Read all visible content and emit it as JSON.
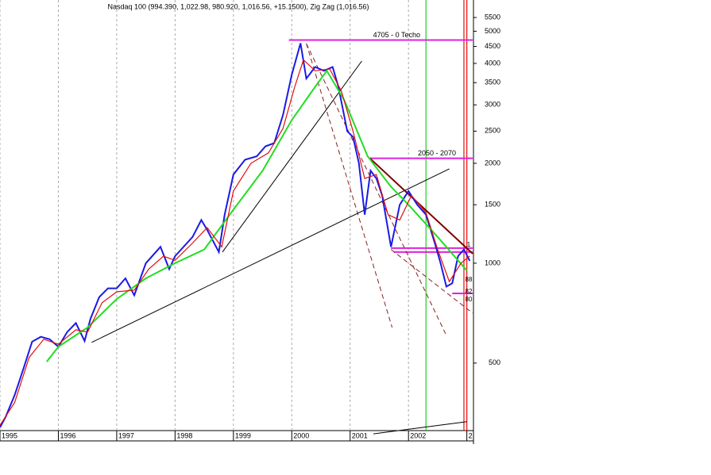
{
  "chart_data": {
    "type": "line",
    "title": "Nasdaq 100 (994.390, 1,022.98, 980.920, 1,016.56, +15.1500), Zig Zag (1,016.56)",
    "log_scale": true,
    "grid": true,
    "xlim": [
      1995,
      2003.1
    ],
    "ylim": [
      313,
      6210
    ],
    "xticks": [
      1995,
      1996,
      1997,
      1998,
      1999,
      2000,
      2001,
      2002,
      {
        "value": 2003,
        "label": "2"
      }
    ],
    "yticks": [
      500,
      1000,
      1500,
      2000,
      2500,
      3000,
      3500,
      4000,
      4500,
      5000,
      5500
    ],
    "series": [
      {
        "color": "#1a1ae6",
        "x": [
          1995.0,
          1995.1,
          1995.25,
          1995.4,
          1995.55,
          1995.7,
          1995.85,
          1996.0,
          1996.15,
          1996.3,
          1996.45,
          1996.55,
          1996.7,
          1996.85,
          1997.0,
          1997.15,
          1997.3,
          1997.5,
          1997.75,
          1997.9,
          1998.0,
          1998.3,
          1998.45,
          1998.55,
          1998.75,
          1998.85,
          1999.0,
          1999.2,
          1999.4,
          1999.55,
          1999.7,
          1999.85,
          2000.0,
          2000.15,
          2000.25,
          2000.4,
          2000.55,
          2000.7,
          2000.8,
          2000.95,
          2001.05,
          2001.15,
          2001.25,
          2001.35,
          2001.45,
          2001.55,
          2001.7,
          2001.85,
          2002.0,
          2002.15,
          2002.3,
          2002.45,
          2002.55,
          2002.65,
          2002.75,
          2002.85,
          2002.95,
          2003.05
        ],
        "values": [
          320,
          345,
          400,
          480,
          580,
          600,
          590,
          560,
          620,
          660,
          583,
          680,
          790,
          840,
          840,
          900,
          800,
          1000,
          1120,
          960,
          1050,
          1200,
          1350,
          1260,
          1080,
          1400,
          1850,
          2050,
          2100,
          2250,
          2300,
          2800,
          3700,
          4600,
          3600,
          3900,
          3800,
          3900,
          3400,
          2500,
          2400,
          2000,
          1400,
          1900,
          1800,
          1600,
          1120,
          1500,
          1650,
          1500,
          1400,
          1150,
          1000,
          850,
          870,
          1050,
          1100,
          1016
        ]
      },
      {
        "color": "#e01010",
        "x": [
          1995.0,
          1995.25,
          1995.5,
          1995.75,
          1996.0,
          1996.3,
          1996.5,
          1996.75,
          1997.0,
          1997.3,
          1997.55,
          1997.8,
          1998.0,
          1998.3,
          1998.55,
          1998.8,
          1999.0,
          1999.3,
          1999.6,
          1999.85,
          2000.05,
          2000.2,
          2000.4,
          2000.65,
          2000.85,
          2001.05,
          2001.25,
          2001.45,
          2001.65,
          2001.85,
          2002.05,
          2002.3,
          2002.5,
          2002.7,
          2002.9,
          2003.05
        ],
        "values": [
          325,
          380,
          520,
          590,
          570,
          630,
          620,
          760,
          820,
          830,
          960,
          1050,
          1020,
          1150,
          1280,
          1120,
          1650,
          2000,
          2150,
          2550,
          3400,
          4100,
          3800,
          3850,
          3300,
          2500,
          1800,
          1850,
          1400,
          1350,
          1600,
          1420,
          1100,
          880,
          1000,
          1050
        ]
      },
      {
        "color": "#22dd22",
        "x": [
          1995.8,
          1996.0,
          1996.5,
          1997.0,
          1997.5,
          1998.0,
          1998.5,
          1999.0,
          1999.5,
          2000.0,
          2000.4,
          2000.6,
          2000.9,
          2001.3,
          2001.7,
          2002.0,
          2002.5,
          2003.0
        ],
        "values": [
          505,
          560,
          640,
          780,
          900,
          1000,
          1100,
          1450,
          1900,
          2700,
          3400,
          3800,
          3100,
          2100,
          1700,
          1500,
          1200,
          950
        ]
      }
    ],
    "trend_lines": [
      {
        "color": "#000000",
        "x": [
          1996.57,
          2002.7
        ],
        "values": [
          577,
          1925
        ]
      },
      {
        "color": "#000000",
        "x": [
          1998.81,
          2001.2
        ],
        "values": [
          1080,
          4065
        ]
      },
      {
        "color": "#800000",
        "x": [
          2001.34,
          2003.1
        ],
        "values": [
          2070,
          1068
        ]
      },
      {
        "color": "#000000",
        "x": [
          2001.4,
          2003.0
        ],
        "values": [
          306,
          333
        ]
      }
    ],
    "dashed_lines": [
      {
        "color": "#8b2020",
        "x": [
          2000.25,
          2001.72
        ],
        "values": [
          4590,
          640
        ]
      },
      {
        "color": "#8b2020",
        "x": [
          2000.25,
          2002.66
        ],
        "values": [
          4590,
          600
        ]
      },
      {
        "color": "#8b2020",
        "x": [
          2001.7,
          2003.1
        ],
        "values": [
          1100,
          707
        ]
      }
    ],
    "levels": [
      {
        "label": "4705 - 0 Techo",
        "value": 4705,
        "x": [
          1999.95,
          2003.1
        ]
      },
      {
        "label": "2050 - 2070",
        "value": 2070,
        "x": [
          2001.33,
          2003.1
        ]
      },
      {
        "value": 1110,
        "x": [
          2001.7,
          2003.1
        ]
      },
      {
        "value": 1080,
        "x": [
          2001.75,
          2003.1
        ]
      },
      {
        "value": 811,
        "x": [
          2002.75,
          2003.1
        ]
      }
    ],
    "vlines": [
      {
        "color": "#22cc22",
        "x": 2002.3
      },
      {
        "color": "#e01010",
        "x": 2002.95
      },
      {
        "color": "#e01010",
        "x": 2003.0
      }
    ],
    "annotations": [
      "1",
      "88",
      "82",
      "80"
    ]
  }
}
